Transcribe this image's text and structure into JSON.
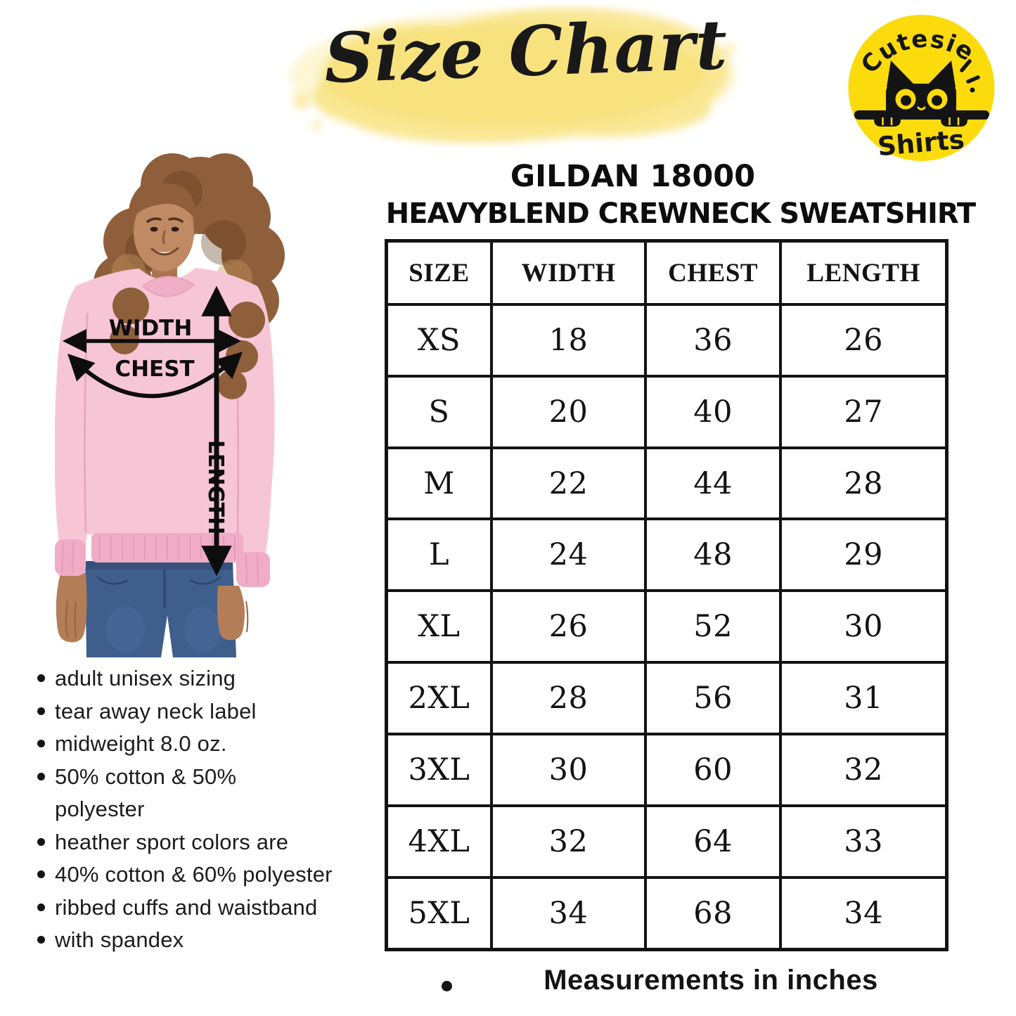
{
  "header": {
    "title": "Size Chart"
  },
  "logo": {
    "brand_top": "Cutesie",
    "brand_bottom": "Shirts",
    "circle_color": "#FBDB0C"
  },
  "product": {
    "line1": "GILDAN 18000",
    "line2": "HEAVYBLEND CREWNECK SWEATSHIRT"
  },
  "diagram": {
    "width_label": "WIDTH",
    "chest_label": "CHEST",
    "length_label": "LENGTH",
    "model_description": "Model wearing light pink crewneck sweatshirt and jeans"
  },
  "features": [
    "adult unisex sizing",
    "tear away neck label",
    "midweight 8.0 oz.",
    "50% cotton & 50%\npolyester",
    "heather sport colors are",
    "40% cotton & 60% polyester",
    "ribbed cuffs and waistband",
    "with spandex"
  ],
  "chart_data": {
    "type": "table",
    "title": "GILDAN 18000 HEAVYBLEND CREWNECK SWEATSHIRT size chart",
    "columns": [
      "SIZE",
      "WIDTH",
      "CHEST",
      "LENGTH"
    ],
    "rows": [
      [
        "XS",
        "18",
        "36",
        "26"
      ],
      [
        "S",
        "20",
        "40",
        "27"
      ],
      [
        "M",
        "22",
        "44",
        "28"
      ],
      [
        "L",
        "24",
        "48",
        "29"
      ],
      [
        "XL",
        "26",
        "52",
        "30"
      ],
      [
        "2XL",
        "28",
        "56",
        "31"
      ],
      [
        "3XL",
        "30",
        "60",
        "32"
      ],
      [
        "4XL",
        "32",
        "64",
        "33"
      ],
      [
        "5XL",
        "34",
        "68",
        "34"
      ]
    ],
    "units_note": "Measurements in inches"
  },
  "footer": {
    "note": "Measurements in inches"
  },
  "colors": {
    "ink": "#141414",
    "watercolor_yellow": "#F7E382",
    "logo_yellow": "#FBDB0C",
    "sweatshirt_pink": "#F7C6D6",
    "denim_blue": "#3F5E8C"
  }
}
